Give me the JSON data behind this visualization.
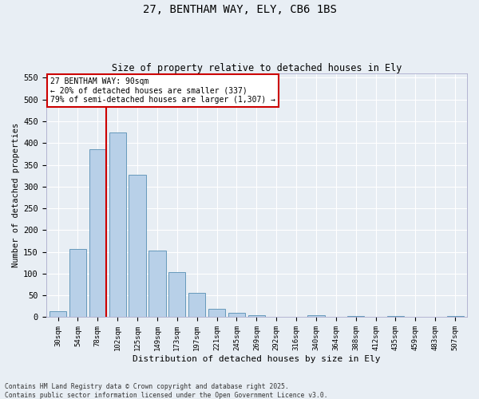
{
  "title1": "27, BENTHAM WAY, ELY, CB6 1BS",
  "title2": "Size of property relative to detached houses in Ely",
  "xlabel": "Distribution of detached houses by size in Ely",
  "ylabel": "Number of detached properties",
  "categories": [
    "30sqm",
    "54sqm",
    "78sqm",
    "102sqm",
    "125sqm",
    "149sqm",
    "173sqm",
    "197sqm",
    "221sqm",
    "245sqm",
    "269sqm",
    "292sqm",
    "316sqm",
    "340sqm",
    "364sqm",
    "388sqm",
    "412sqm",
    "435sqm",
    "459sqm",
    "483sqm",
    "507sqm"
  ],
  "values": [
    13,
    157,
    385,
    425,
    328,
    153,
    104,
    56,
    19,
    10,
    4,
    1,
    0,
    4,
    0,
    3,
    0,
    2,
    0,
    1,
    3
  ],
  "bar_color": "#b8d0e8",
  "bar_edge_color": "#6699bb",
  "vline_color": "#cc0000",
  "annotation_text": "27 BENTHAM WAY: 90sqm\n← 20% of detached houses are smaller (337)\n79% of semi-detached houses are larger (1,307) →",
  "annotation_box_color": "#ffffff",
  "annotation_border_color": "#cc0000",
  "ylim": [
    0,
    560
  ],
  "yticks": [
    0,
    50,
    100,
    150,
    200,
    250,
    300,
    350,
    400,
    450,
    500,
    550
  ],
  "bg_color": "#e8eef4",
  "grid_color": "#ffffff",
  "footnote": "Contains HM Land Registry data © Crown copyright and database right 2025.\nContains public sector information licensed under the Open Government Licence v3.0."
}
